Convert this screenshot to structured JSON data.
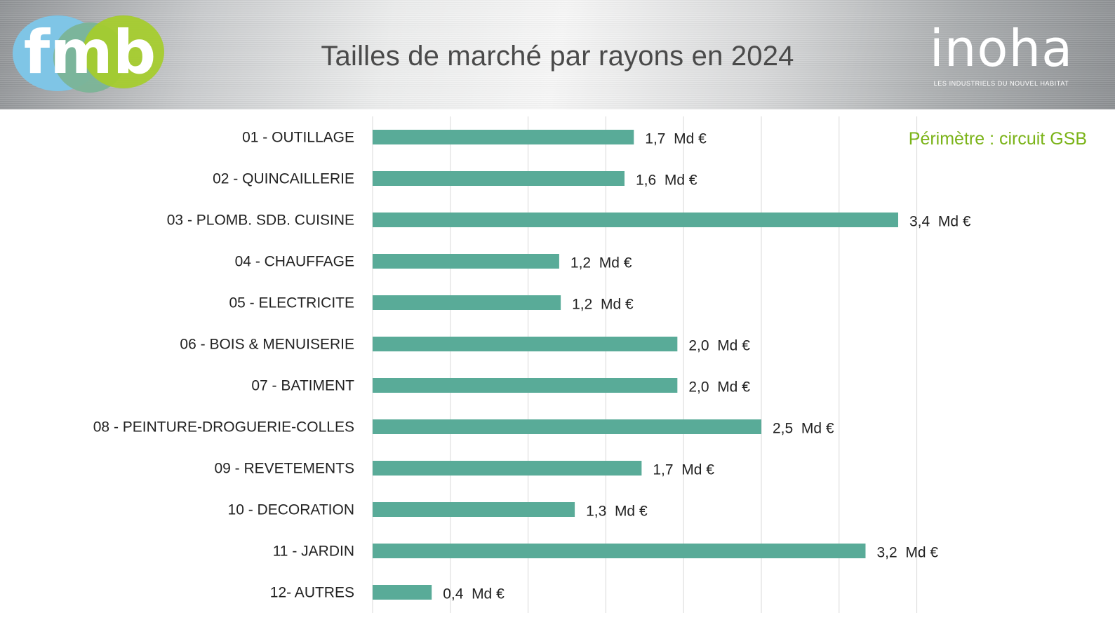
{
  "header": {
    "title": "Tailles de marché par rayons en 2024",
    "logo_left": "fmb",
    "logo_right": "inoha",
    "logo_right_tagline": "LES INDUSTRIELS DU NOUVEL HABITAT"
  },
  "note": "Périmètre : circuit GSB",
  "colors": {
    "bar": "#59ab98",
    "note": "#7ab317",
    "gridline": "#d9d9d9"
  },
  "chart_data": {
    "type": "bar",
    "orientation": "horizontal",
    "categories": [
      "01 - OUTILLAGE",
      "02 - QUINCAILLERIE",
      "03 - PLOMB. SDB. CUISINE",
      "04 - CHAUFFAGE",
      "05 - ELECTRICITE",
      "06 - BOIS & MENUISERIE",
      "07 - BATIMENT",
      "08 - PEINTURE-DROGUERIE-COLLES",
      "09 - REVETEMENTS",
      "10 - DECORATION",
      "11 - JARDIN",
      "12- AUTRES"
    ],
    "values": [
      1.68,
      1.62,
      3.38,
      1.2,
      1.21,
      1.96,
      1.96,
      2.5,
      1.73,
      1.3,
      3.17,
      0.38
    ],
    "value_labels": [
      "1,7  Md €",
      "1,6  Md €",
      "3,4  Md €",
      "1,2  Md €",
      "1,2  Md €",
      "2,0  Md €",
      "2,0  Md €",
      "2,5  Md €",
      "1,7  Md €",
      "1,3  Md €",
      "3,2  Md €",
      "0,4  Md €"
    ],
    "xlim": [
      0,
      3.5
    ],
    "grid_step": 0.5,
    "grid": true,
    "legend": false
  }
}
